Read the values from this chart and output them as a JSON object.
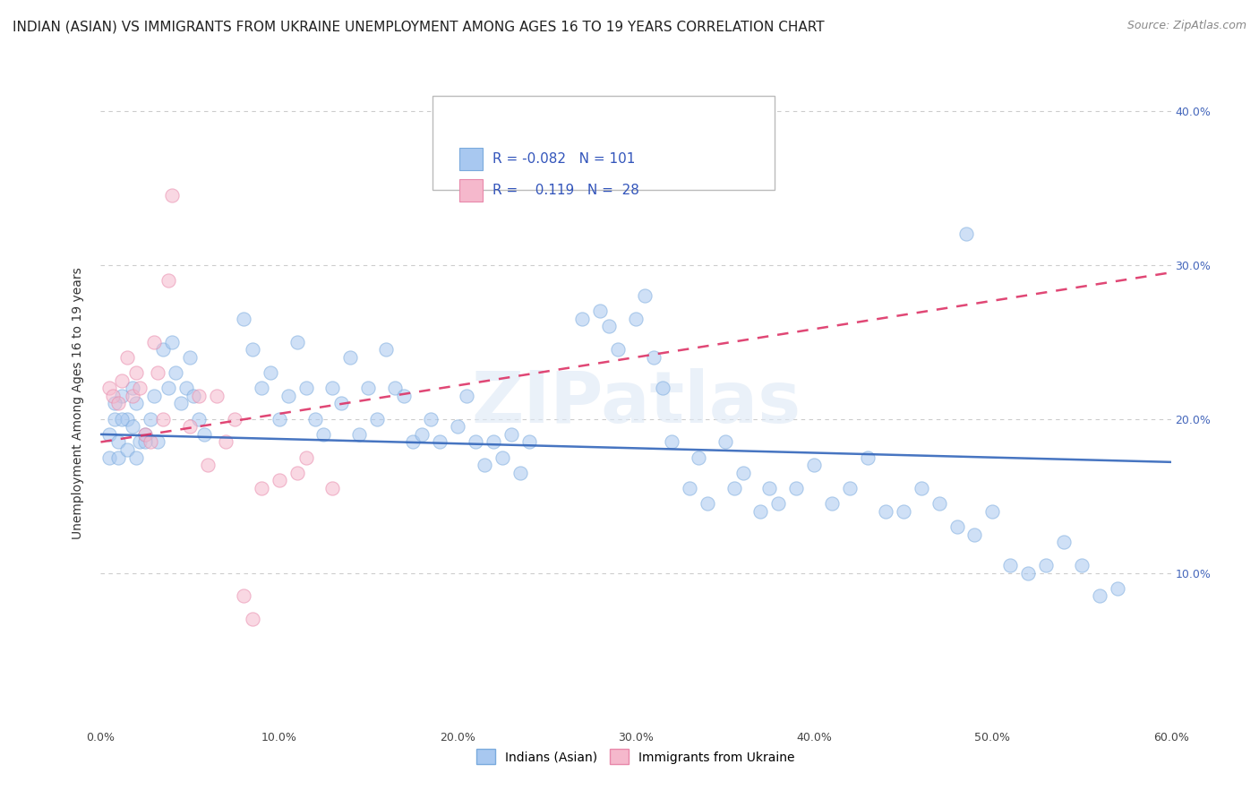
{
  "title": "INDIAN (ASIAN) VS IMMIGRANTS FROM UKRAINE UNEMPLOYMENT AMONG AGES 16 TO 19 YEARS CORRELATION CHART",
  "source": "Source: ZipAtlas.com",
  "ylabel": "Unemployment Among Ages 16 to 19 years",
  "legend_blue_r": "-0.082",
  "legend_blue_n": "101",
  "legend_pink_r": "0.119",
  "legend_pink_n": "28",
  "legend_label_blue": "Indians (Asian)",
  "legend_label_pink": "Immigrants from Ukraine",
  "xmin": 0.0,
  "xmax": 0.6,
  "ymin": 0.0,
  "ymax": 0.42,
  "yticks_right": [
    0.1,
    0.2,
    0.3,
    0.4
  ],
  "ytick_labels_right": [
    "10.0%",
    "20.0%",
    "30.0%",
    "40.0%"
  ],
  "xticks": [
    0.0,
    0.1,
    0.2,
    0.3,
    0.4,
    0.5,
    0.6
  ],
  "xtick_labels": [
    "0.0%",
    "10.0%",
    "20.0%",
    "30.0%",
    "40.0%",
    "50.0%",
    "60.0%"
  ],
  "grid_color": "#cccccc",
  "blue_color": "#a8c8f0",
  "blue_edge_color": "#7aaadd",
  "pink_color": "#f5b8cc",
  "pink_edge_color": "#e888aa",
  "blue_line_color": "#3366bb",
  "pink_line_color": "#dd3366",
  "watermark": "ZIPatlas",
  "background_color": "#ffffff",
  "title_fontsize": 11,
  "axis_label_fontsize": 10,
  "tick_fontsize": 9,
  "scatter_size": 120,
  "scatter_alpha": 0.55,
  "line_alpha": 0.9,
  "line_width": 1.8,
  "blue_line_start_y": 0.19,
  "blue_line_end_y": 0.172,
  "pink_line_start_y": 0.185,
  "pink_line_end_y": 0.295
}
